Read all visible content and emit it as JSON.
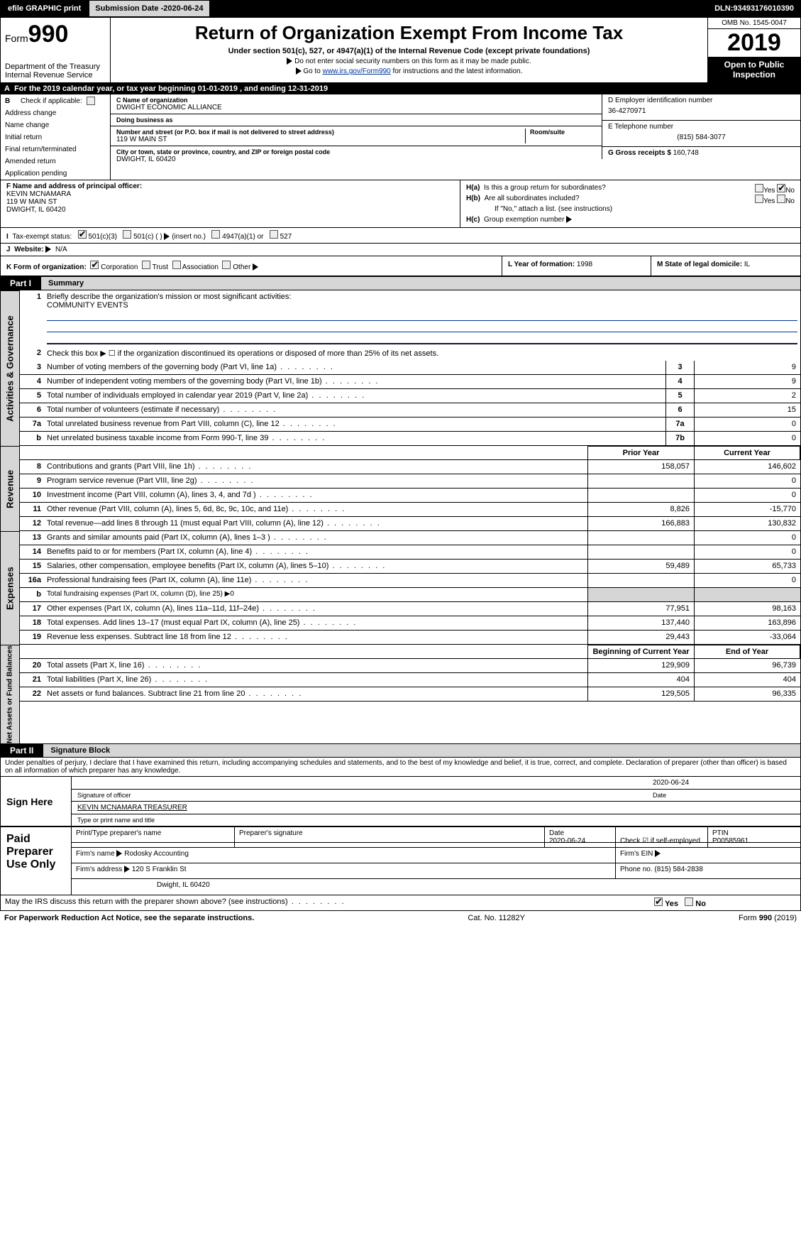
{
  "topbar": {
    "efile": "efile GRAPHIC print",
    "submission_label": "Submission Date - ",
    "submission_date": "2020-06-24",
    "dln_label": "DLN: ",
    "dln": "93493176010390"
  },
  "header": {
    "form_prefix": "Form",
    "form_number": "990",
    "dept": "Department of the Treasury",
    "irs": "Internal Revenue Service",
    "title": "Return of Organization Exempt From Income Tax",
    "subtitle": "Under section 501(c), 527, or 4947(a)(1) of the Internal Revenue Code (except private foundations)",
    "note1": "Do not enter social security numbers on this form as it may be made public.",
    "note2_pre": "Go to ",
    "note2_link": "www.irs.gov/Form990",
    "note2_post": " for instructions and the latest information.",
    "omb": "OMB No. 1545-0047",
    "year": "2019",
    "open": "Open to Public Inspection"
  },
  "line_a": {
    "text_pre": "For the 2019 calendar year, or tax year beginning ",
    "begin": "01-01-2019",
    "mid": " , and ending ",
    "end": "12-31-2019"
  },
  "col_b": {
    "header": "Check if applicable:",
    "items": [
      "Address change",
      "Name change",
      "Initial return",
      "Final return/terminated",
      "Amended return",
      "Application pending"
    ]
  },
  "block_c": {
    "name_lbl": "C Name of organization",
    "name": "DWIGHT ECONOMIC ALLIANCE",
    "dba_lbl": "Doing business as",
    "dba": "",
    "street_lbl": "Number and street (or P.O. box if mail is not delivered to street address)",
    "street": "119 W MAIN ST",
    "room_lbl": "Room/suite",
    "city_lbl": "City or town, state or province, country, and ZIP or foreign postal code",
    "city": "DWIGHT, IL  60420"
  },
  "block_d": {
    "lbl": "D Employer identification number",
    "val": "36-4270971"
  },
  "block_e": {
    "lbl": "E Telephone number",
    "val": "(815) 584-3077"
  },
  "block_g": {
    "lbl": "G Gross receipts $ ",
    "val": "160,748"
  },
  "block_f": {
    "lbl": "F Name and address of principal officer:",
    "name": "KEVIN MCNAMARA",
    "street": "119 W MAIN ST",
    "city": "DWIGHT, IL  60420"
  },
  "block_h": {
    "a": "Is this a group return for subordinates?",
    "b": "Are all subordinates included?",
    "b_note": "If \"No,\" attach a list. (see instructions)",
    "c": "Group exemption number",
    "yes": "Yes",
    "no": "No"
  },
  "block_i": {
    "lbl": "Tax-exempt status:",
    "opts": [
      "501(c)(3)",
      "501(c) (  )",
      "4947(a)(1) or",
      "527"
    ],
    "insert": "(insert no.)"
  },
  "block_j": {
    "lbl": "Website:",
    "val": "N/A"
  },
  "block_k": {
    "lbl": "K Form of organization:",
    "opts": [
      "Corporation",
      "Trust",
      "Association",
      "Other"
    ]
  },
  "block_l": {
    "lbl": "L Year of formation: ",
    "val": "1998"
  },
  "block_m": {
    "lbl": "M State of legal domicile: ",
    "val": "IL"
  },
  "part1": {
    "tab": "Part I",
    "title": "Summary"
  },
  "summary": {
    "q1": "Briefly describe the organization's mission or most significant activities:",
    "mission": "COMMUNITY EVENTS",
    "q2": "Check this box ▶ ☐ if the organization discontinued its operations or disposed of more than 25% of its net assets.",
    "lines_gov": [
      {
        "n": "3",
        "t": "Number of voting members of the governing body (Part VI, line 1a)",
        "box": "3",
        "v": "9"
      },
      {
        "n": "4",
        "t": "Number of independent voting members of the governing body (Part VI, line 1b)",
        "box": "4",
        "v": "9"
      },
      {
        "n": "5",
        "t": "Total number of individuals employed in calendar year 2019 (Part V, line 2a)",
        "box": "5",
        "v": "2"
      },
      {
        "n": "6",
        "t": "Total number of volunteers (estimate if necessary)",
        "box": "6",
        "v": "15"
      },
      {
        "n": "7a",
        "t": "Total unrelated business revenue from Part VIII, column (C), line 12",
        "box": "7a",
        "v": "0"
      },
      {
        "n": "b",
        "t": "Net unrelated business taxable income from Form 990-T, line 39",
        "box": "7b",
        "v": "0"
      }
    ],
    "col_hdrs": {
      "prior": "Prior Year",
      "current": "Current Year"
    },
    "revenue": [
      {
        "n": "8",
        "t": "Contributions and grants (Part VIII, line 1h)",
        "p": "158,057",
        "c": "146,602"
      },
      {
        "n": "9",
        "t": "Program service revenue (Part VIII, line 2g)",
        "p": "",
        "c": "0"
      },
      {
        "n": "10",
        "t": "Investment income (Part VIII, column (A), lines 3, 4, and 7d )",
        "p": "",
        "c": "0"
      },
      {
        "n": "11",
        "t": "Other revenue (Part VIII, column (A), lines 5, 6d, 8c, 9c, 10c, and 11e)",
        "p": "8,826",
        "c": "-15,770"
      },
      {
        "n": "12",
        "t": "Total revenue—add lines 8 through 11 (must equal Part VIII, column (A), line 12)",
        "p": "166,883",
        "c": "130,832"
      }
    ],
    "expenses": [
      {
        "n": "13",
        "t": "Grants and similar amounts paid (Part IX, column (A), lines 1–3 )",
        "p": "",
        "c": "0"
      },
      {
        "n": "14",
        "t": "Benefits paid to or for members (Part IX, column (A), line 4)",
        "p": "",
        "c": "0"
      },
      {
        "n": "15",
        "t": "Salaries, other compensation, employee benefits (Part IX, column (A), lines 5–10)",
        "p": "59,489",
        "c": "65,733"
      },
      {
        "n": "16a",
        "t": "Professional fundraising fees (Part IX, column (A), line 11e)",
        "p": "",
        "c": "0"
      },
      {
        "n": "b",
        "t": "Total fundraising expenses (Part IX, column (D), line 25) ▶0",
        "p": null,
        "c": null
      },
      {
        "n": "17",
        "t": "Other expenses (Part IX, column (A), lines 11a–11d, 11f–24e)",
        "p": "77,951",
        "c": "98,163"
      },
      {
        "n": "18",
        "t": "Total expenses. Add lines 13–17 (must equal Part IX, column (A), line 25)",
        "p": "137,440",
        "c": "163,896"
      },
      {
        "n": "19",
        "t": "Revenue less expenses. Subtract line 18 from line 12",
        "p": "29,443",
        "c": "-33,064"
      }
    ],
    "net_hdrs": {
      "begin": "Beginning of Current Year",
      "end": "End of Year"
    },
    "net": [
      {
        "n": "20",
        "t": "Total assets (Part X, line 16)",
        "p": "129,909",
        "c": "96,739"
      },
      {
        "n": "21",
        "t": "Total liabilities (Part X, line 26)",
        "p": "404",
        "c": "404"
      },
      {
        "n": "22",
        "t": "Net assets or fund balances. Subtract line 21 from line 20",
        "p": "129,505",
        "c": "96,335"
      }
    ]
  },
  "vert": {
    "gov": "Activities & Governance",
    "rev": "Revenue",
    "exp": "Expenses",
    "net": "Net Assets or Fund Balances"
  },
  "part2": {
    "tab": "Part II",
    "title": "Signature Block"
  },
  "perjury": "Under penalties of perjury, I declare that I have examined this return, including accompanying schedules and statements, and to the best of my knowledge and belief, it is true, correct, and complete. Declaration of preparer (other than officer) is based on all information of which preparer has any knowledge.",
  "sign": {
    "here": "Sign Here",
    "sig_lbl": "Signature of officer",
    "date_lbl": "Date",
    "date": "2020-06-24",
    "name": "KEVIN MCNAMARA TREASURER",
    "name_lbl": "Type or print name and title"
  },
  "paid": {
    "lbl": "Paid Preparer Use Only",
    "h": [
      "Print/Type preparer's name",
      "Preparer's signature",
      "Date",
      "",
      "PTIN"
    ],
    "r1": [
      "",
      "",
      "2020-06-24",
      "Check ☑ if self-employed",
      "P00585961"
    ],
    "firm_lbl": "Firm's name",
    "firm": "Rodosky Accounting",
    "ein_lbl": "Firm's EIN",
    "addr_lbl": "Firm's address",
    "addr1": "120 S Franklin St",
    "addr2": "Dwight, IL  60420",
    "phone_lbl": "Phone no. ",
    "phone": "(815) 584-2838"
  },
  "discuss": {
    "q": "May the IRS discuss this return with the preparer shown above? (see instructions)",
    "yes": "Yes",
    "no": "No"
  },
  "footer": {
    "left": "For Paperwork Reduction Act Notice, see the separate instructions.",
    "mid": "Cat. No. 11282Y",
    "right": "Form 990 (2019)"
  }
}
